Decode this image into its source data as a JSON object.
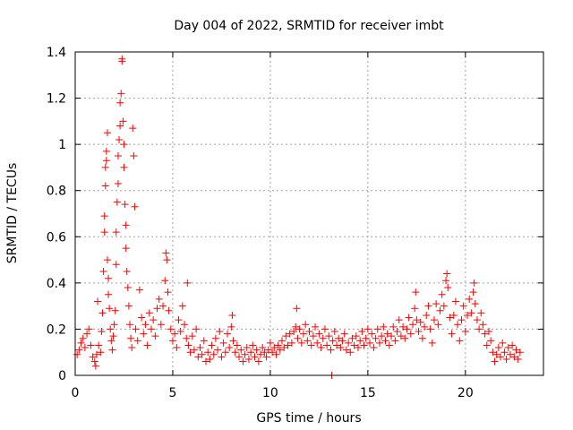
{
  "chart_data": {
    "type": "scatter",
    "title": "Day 004 of 2022, SRMTID for receiver imbt",
    "xlabel": "GPS time / hours",
    "ylabel": "SRMTID / TECUs",
    "xlim": [
      0,
      24
    ],
    "ylim": [
      0,
      1.4
    ],
    "xticks": [
      0,
      5,
      10,
      15,
      20
    ],
    "xtick_labels": [
      "0",
      "5",
      "10",
      "15",
      "20"
    ],
    "yticks": [
      0,
      0.2,
      0.4,
      0.6,
      0.8,
      1,
      1.2,
      1.4
    ],
    "ytick_labels": [
      "0",
      "0.2",
      "0.4",
      "0.6",
      "0.8",
      "1",
      "1.2",
      "1.4"
    ],
    "grid": true,
    "marker": "+",
    "marker_color": "#ff0000",
    "series": [
      {
        "name": "imbt",
        "points": [
          [
            0.1,
            0.09
          ],
          [
            0.2,
            0.11
          ],
          [
            0.3,
            0.14
          ],
          [
            0.4,
            0.16
          ],
          [
            0.5,
            0.12
          ],
          [
            0.6,
            0.18
          ],
          [
            0.7,
            0.2
          ],
          [
            0.8,
            0.13
          ],
          [
            0.9,
            0.08
          ],
          [
            1.0,
            0.06
          ],
          [
            1.05,
            0.04
          ],
          [
            1.1,
            0.09
          ],
          [
            1.15,
            0.32
          ],
          [
            1.2,
            0.13
          ],
          [
            1.3,
            0.1
          ],
          [
            1.35,
            0.19
          ],
          [
            1.4,
            0.27
          ],
          [
            1.45,
            0.45
          ],
          [
            1.5,
            0.62
          ],
          [
            1.5,
            0.69
          ],
          [
            1.55,
            0.82
          ],
          [
            1.55,
            0.9
          ],
          [
            1.6,
            0.93
          ],
          [
            1.6,
            0.97
          ],
          [
            1.65,
            1.05
          ],
          [
            1.65,
            0.5
          ],
          [
            1.7,
            0.42
          ],
          [
            1.7,
            0.35
          ],
          [
            1.75,
            0.29
          ],
          [
            1.8,
            0.2
          ],
          [
            1.85,
            0.15
          ],
          [
            1.9,
            0.11
          ],
          [
            1.95,
            0.17
          ],
          [
            2.0,
            0.22
          ],
          [
            2.05,
            0.28
          ],
          [
            2.1,
            0.48
          ],
          [
            2.1,
            0.62
          ],
          [
            2.15,
            0.75
          ],
          [
            2.2,
            0.83
          ],
          [
            2.2,
            0.95
          ],
          [
            2.25,
            1.02
          ],
          [
            2.3,
            1.08
          ],
          [
            2.3,
            1.18
          ],
          [
            2.35,
            1.22
          ],
          [
            2.4,
            1.37
          ],
          [
            2.4,
            1.36
          ],
          [
            2.45,
            1.1
          ],
          [
            2.5,
            1.0
          ],
          [
            2.5,
            0.9
          ],
          [
            2.55,
            0.74
          ],
          [
            2.6,
            0.65
          ],
          [
            2.6,
            0.55
          ],
          [
            2.65,
            0.45
          ],
          [
            2.7,
            0.38
          ],
          [
            2.75,
            0.3
          ],
          [
            2.8,
            0.22
          ],
          [
            2.85,
            0.16
          ],
          [
            2.9,
            0.12
          ],
          [
            2.95,
            1.07
          ],
          [
            3.0,
            0.95
          ],
          [
            3.05,
            0.73
          ],
          [
            3.1,
            0.2
          ],
          [
            3.2,
            0.15
          ],
          [
            3.3,
            0.37
          ],
          [
            3.4,
            0.25
          ],
          [
            3.5,
            0.18
          ],
          [
            3.6,
            0.22
          ],
          [
            3.7,
            0.13
          ],
          [
            3.8,
            0.27
          ],
          [
            3.9,
            0.2
          ],
          [
            4.0,
            0.24
          ],
          [
            4.1,
            0.17
          ],
          [
            4.2,
            0.29
          ],
          [
            4.3,
            0.33
          ],
          [
            4.4,
            0.22
          ],
          [
            4.5,
            0.3
          ],
          [
            4.6,
            0.41
          ],
          [
            4.65,
            0.53
          ],
          [
            4.7,
            0.5
          ],
          [
            4.75,
            0.36
          ],
          [
            4.8,
            0.28
          ],
          [
            4.9,
            0.2
          ],
          [
            5.0,
            0.15
          ],
          [
            5.1,
            0.18
          ],
          [
            5.2,
            0.12
          ],
          [
            5.3,
            0.24
          ],
          [
            5.4,
            0.19
          ],
          [
            5.5,
            0.3
          ],
          [
            5.6,
            0.22
          ],
          [
            5.7,
            0.16
          ],
          [
            5.75,
            0.4
          ],
          [
            5.8,
            0.13
          ],
          [
            5.9,
            0.1
          ],
          [
            6.0,
            0.17
          ],
          [
            6.1,
            0.11
          ],
          [
            6.2,
            0.2
          ],
          [
            6.3,
            0.08
          ],
          [
            6.4,
            0.12
          ],
          [
            6.5,
            0.09
          ],
          [
            6.6,
            0.15
          ],
          [
            6.7,
            0.06
          ],
          [
            6.8,
            0.1
          ],
          [
            6.9,
            0.07
          ],
          [
            7.0,
            0.13
          ],
          [
            7.1,
            0.09
          ],
          [
            7.2,
            0.16
          ],
          [
            7.3,
            0.11
          ],
          [
            7.4,
            0.19
          ],
          [
            7.5,
            0.08
          ],
          [
            7.6,
            0.14
          ],
          [
            7.7,
            0.1
          ],
          [
            7.8,
            0.18
          ],
          [
            7.9,
            0.12
          ],
          [
            8.0,
            0.21
          ],
          [
            8.05,
            0.26
          ],
          [
            8.1,
            0.15
          ],
          [
            8.2,
            0.1
          ],
          [
            8.3,
            0.13
          ],
          [
            8.4,
            0.08
          ],
          [
            8.5,
            0.11
          ],
          [
            8.6,
            0.06
          ],
          [
            8.7,
            0.09
          ],
          [
            8.8,
            0.12
          ],
          [
            8.9,
            0.07
          ],
          [
            9.0,
            0.1
          ],
          [
            9.1,
            0.13
          ],
          [
            9.2,
            0.08
          ],
          [
            9.3,
            0.11
          ],
          [
            9.4,
            0.06
          ],
          [
            9.5,
            0.09
          ],
          [
            9.6,
            0.12
          ],
          [
            9.7,
            0.1
          ],
          [
            9.8,
            0.08
          ],
          [
            9.9,
            0.11
          ],
          [
            10.0,
            0.14
          ],
          [
            10.1,
            0.1
          ],
          [
            10.2,
            0.12
          ],
          [
            10.3,
            0.09
          ],
          [
            10.4,
            0.13
          ],
          [
            10.5,
            0.11
          ],
          [
            10.6,
            0.15
          ],
          [
            10.7,
            0.12
          ],
          [
            10.8,
            0.17
          ],
          [
            10.9,
            0.13
          ],
          [
            11.0,
            0.18
          ],
          [
            11.1,
            0.14
          ],
          [
            11.2,
            0.19
          ],
          [
            11.3,
            0.21
          ],
          [
            11.35,
            0.29
          ],
          [
            11.4,
            0.16
          ],
          [
            11.5,
            0.2
          ],
          [
            11.6,
            0.14
          ],
          [
            11.7,
            0.18
          ],
          [
            11.8,
            0.22
          ],
          [
            11.9,
            0.15
          ],
          [
            12.0,
            0.19
          ],
          [
            12.1,
            0.13
          ],
          [
            12.2,
            0.17
          ],
          [
            12.3,
            0.21
          ],
          [
            12.4,
            0.14
          ],
          [
            12.5,
            0.18
          ],
          [
            12.6,
            0.12
          ],
          [
            12.7,
            0.16
          ],
          [
            12.8,
            0.2
          ],
          [
            12.9,
            0.13
          ],
          [
            13.0,
            0.17
          ],
          [
            13.1,
            0.11
          ],
          [
            13.15,
            0.0
          ],
          [
            13.2,
            0.15
          ],
          [
            13.3,
            0.19
          ],
          [
            13.4,
            0.13
          ],
          [
            13.5,
            0.16
          ],
          [
            13.6,
            0.12
          ],
          [
            13.7,
            0.15
          ],
          [
            13.8,
            0.18
          ],
          [
            13.9,
            0.11
          ],
          [
            14.0,
            0.14
          ],
          [
            14.1,
            0.1
          ],
          [
            14.2,
            0.16
          ],
          [
            14.3,
            0.13
          ],
          [
            14.4,
            0.17
          ],
          [
            14.5,
            0.12
          ],
          [
            14.6,
            0.15
          ],
          [
            14.7,
            0.19
          ],
          [
            14.8,
            0.13
          ],
          [
            14.9,
            0.16
          ],
          [
            15.0,
            0.2
          ],
          [
            15.1,
            0.14
          ],
          [
            15.2,
            0.18
          ],
          [
            15.3,
            0.12
          ],
          [
            15.4,
            0.16
          ],
          [
            15.5,
            0.2
          ],
          [
            15.6,
            0.14
          ],
          [
            15.7,
            0.17
          ],
          [
            15.8,
            0.21
          ],
          [
            15.9,
            0.15
          ],
          [
            16.0,
            0.18
          ],
          [
            16.1,
            0.13
          ],
          [
            16.2,
            0.17
          ],
          [
            16.3,
            0.21
          ],
          [
            16.4,
            0.15
          ],
          [
            16.5,
            0.19
          ],
          [
            16.6,
            0.24
          ],
          [
            16.7,
            0.17
          ],
          [
            16.8,
            0.21
          ],
          [
            16.9,
            0.16
          ],
          [
            17.0,
            0.2
          ],
          [
            17.1,
            0.25
          ],
          [
            17.2,
            0.18
          ],
          [
            17.3,
            0.22
          ],
          [
            17.4,
            0.29
          ],
          [
            17.45,
            0.36
          ],
          [
            17.5,
            0.24
          ],
          [
            17.6,
            0.19
          ],
          [
            17.7,
            0.23
          ],
          [
            17.8,
            0.16
          ],
          [
            17.9,
            0.21
          ],
          [
            18.0,
            0.26
          ],
          [
            18.1,
            0.3
          ],
          [
            18.2,
            0.2
          ],
          [
            18.3,
            0.14
          ],
          [
            18.4,
            0.24
          ],
          [
            18.5,
            0.31
          ],
          [
            18.6,
            0.22
          ],
          [
            18.7,
            0.28
          ],
          [
            18.8,
            0.35
          ],
          [
            18.9,
            0.3
          ],
          [
            19.0,
            0.41
          ],
          [
            19.05,
            0.44
          ],
          [
            19.1,
            0.38
          ],
          [
            19.2,
            0.25
          ],
          [
            19.3,
            0.18
          ],
          [
            19.4,
            0.26
          ],
          [
            19.5,
            0.32
          ],
          [
            19.6,
            0.22
          ],
          [
            19.7,
            0.15
          ],
          [
            19.8,
            0.24
          ],
          [
            19.9,
            0.3
          ],
          [
            20.0,
            0.19
          ],
          [
            20.1,
            0.26
          ],
          [
            20.2,
            0.33
          ],
          [
            20.3,
            0.27
          ],
          [
            20.4,
            0.36
          ],
          [
            20.45,
            0.4
          ],
          [
            20.5,
            0.31
          ],
          [
            20.6,
            0.24
          ],
          [
            20.7,
            0.2
          ],
          [
            20.8,
            0.27
          ],
          [
            20.9,
            0.22
          ],
          [
            21.0,
            0.18
          ],
          [
            21.1,
            0.13
          ],
          [
            21.2,
            0.19
          ],
          [
            21.3,
            0.15
          ],
          [
            21.4,
            0.1
          ],
          [
            21.5,
            0.06
          ],
          [
            21.6,
            0.09
          ],
          [
            21.7,
            0.12
          ],
          [
            21.8,
            0.08
          ],
          [
            21.9,
            0.14
          ],
          [
            22.0,
            0.1
          ],
          [
            22.1,
            0.07
          ],
          [
            22.2,
            0.12
          ],
          [
            22.3,
            0.09
          ],
          [
            22.4,
            0.13
          ],
          [
            22.5,
            0.08
          ],
          [
            22.6,
            0.11
          ],
          [
            22.7,
            0.07
          ],
          [
            22.8,
            0.1
          ]
        ]
      }
    ]
  }
}
